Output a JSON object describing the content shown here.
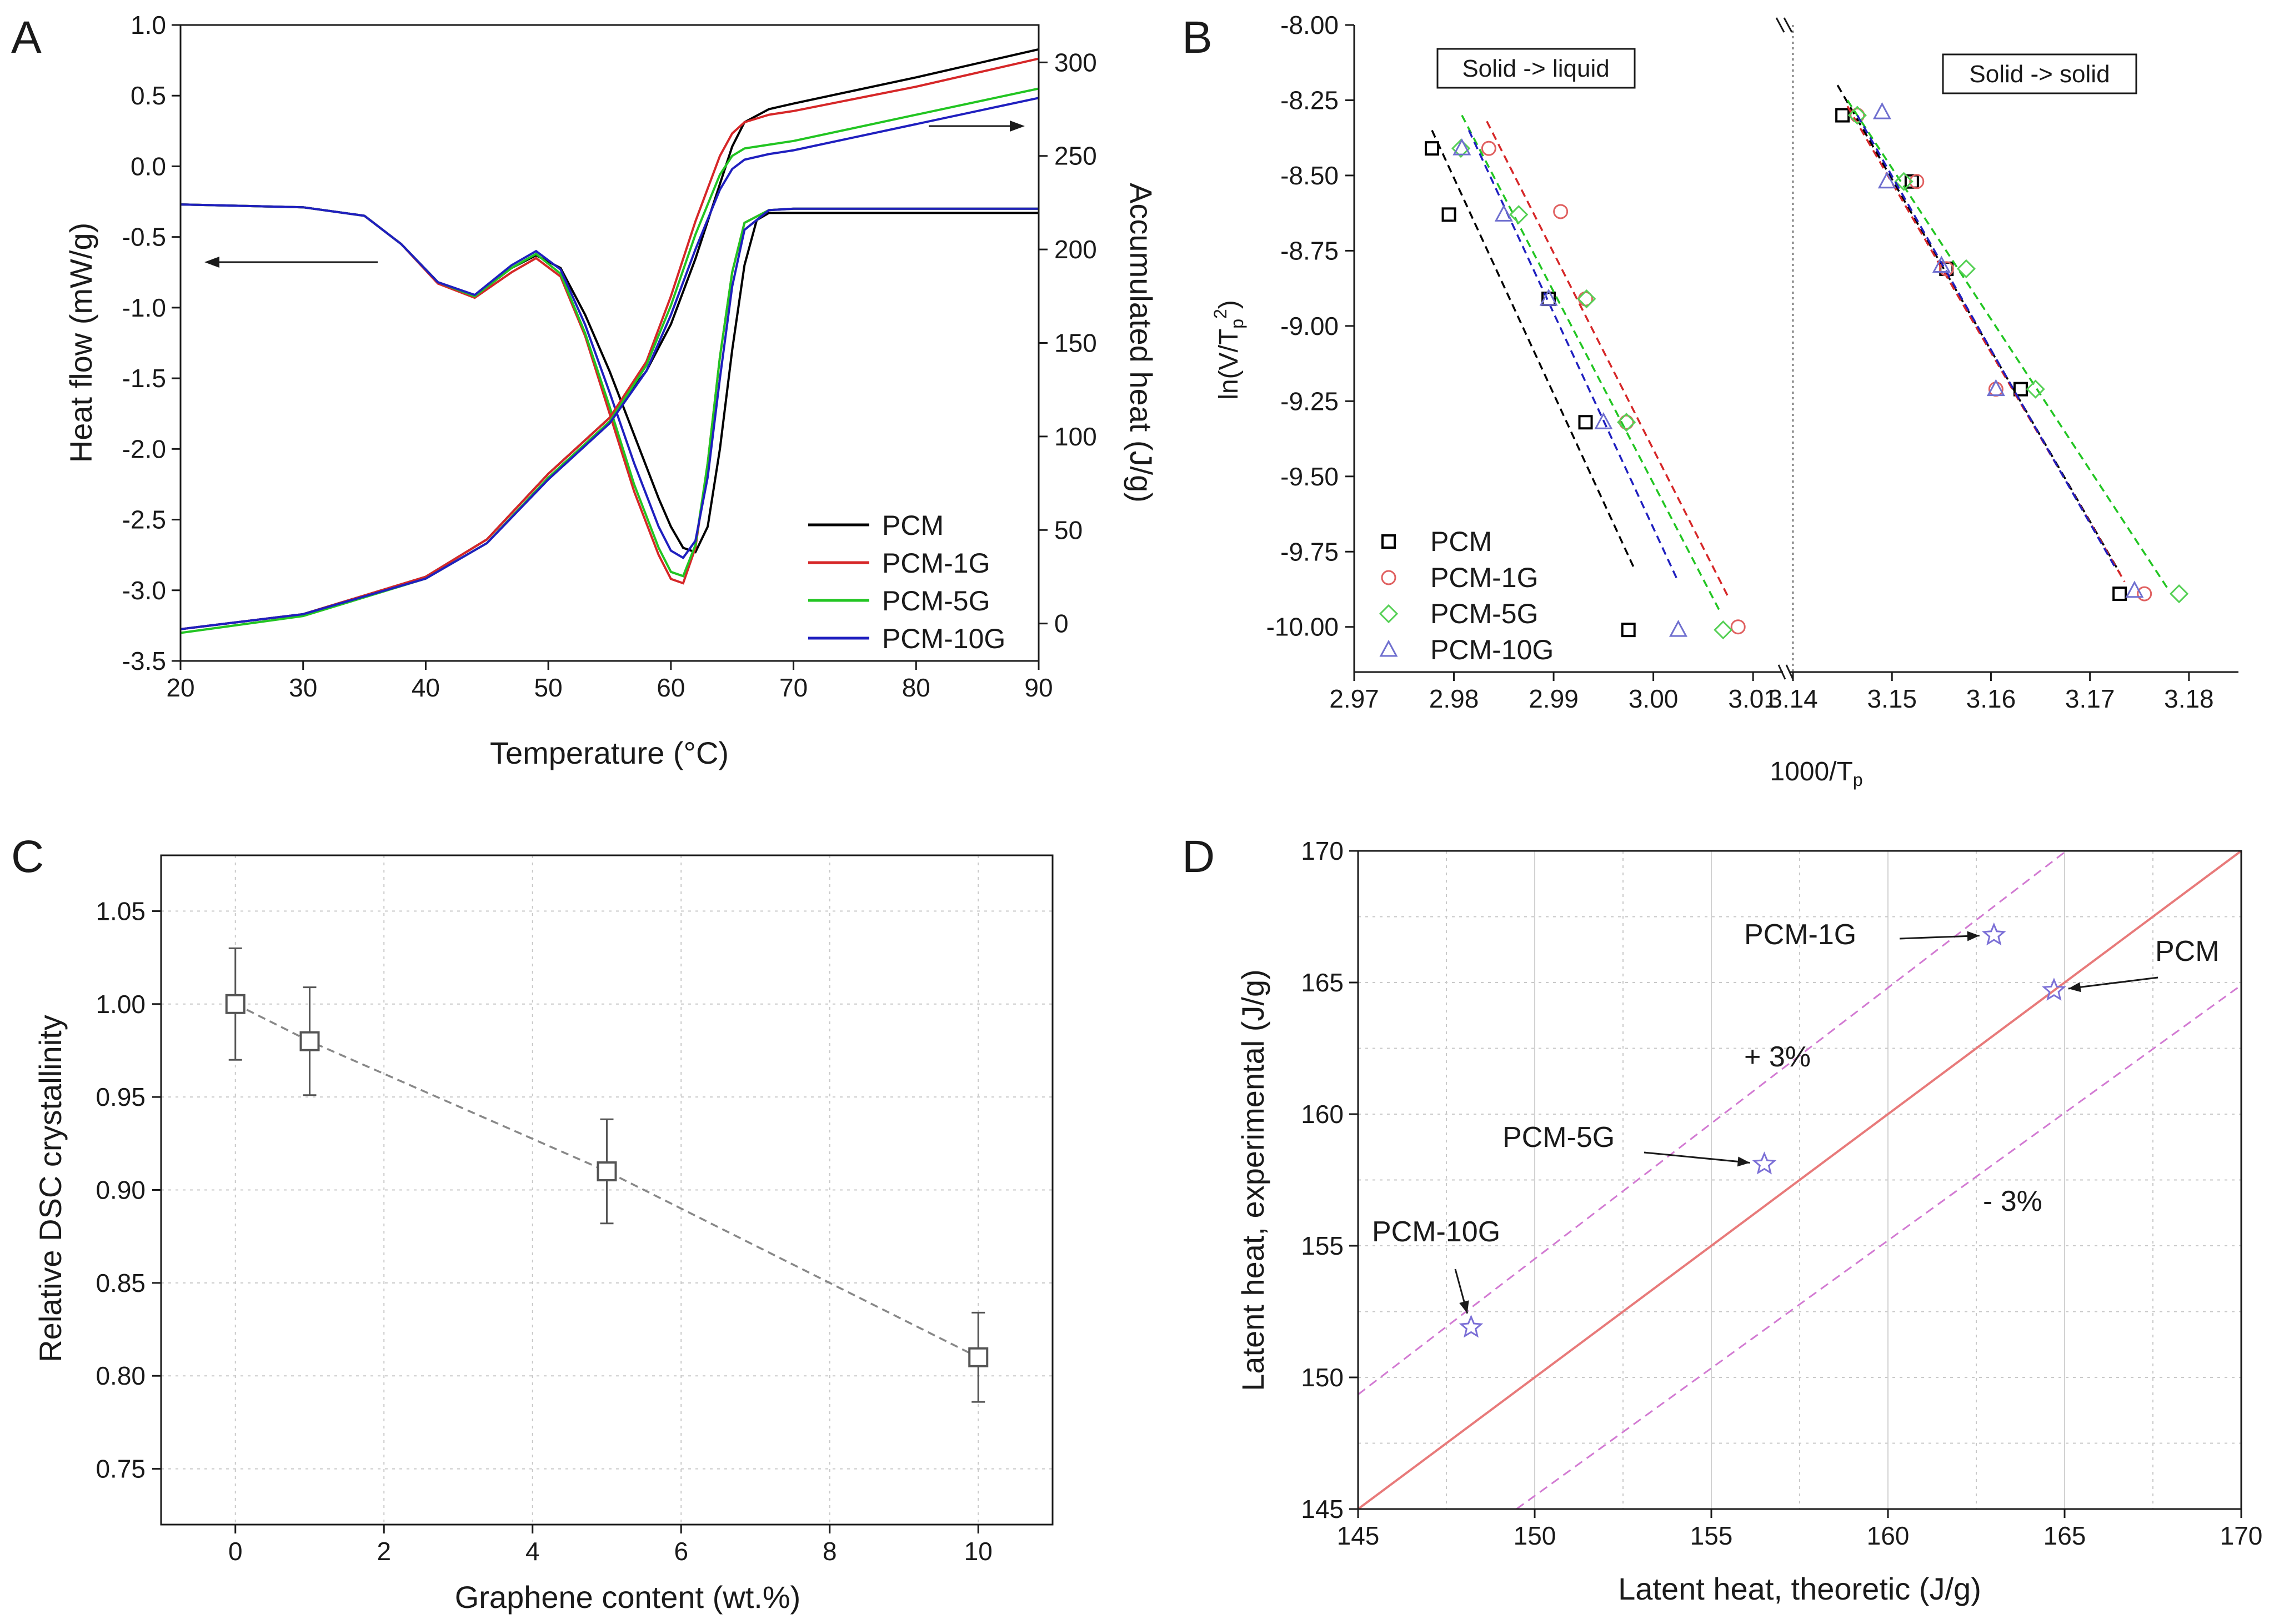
{
  "chart_data": [
    {
      "panel": "A",
      "type": "line",
      "xlabel": "Temperature (°C)",
      "ylabel": "Heat flow (mW/g)",
      "y2label": "Accumulated heat (J/g)",
      "xlim": [
        20,
        90
      ],
      "ylim": [
        -3.5,
        1.0
      ],
      "y2lim": [
        -20,
        320
      ],
      "xticks": [
        "20",
        "30",
        "40",
        "50",
        "60",
        "70",
        "80",
        "90"
      ],
      "yticks": [
        "-3.5",
        "-3.0",
        "-2.5",
        "-2.0",
        "-1.5",
        "-1.0",
        "-0.5",
        "0.0",
        "0.5",
        "1.0"
      ],
      "y2ticks": [
        "0",
        "50",
        "100",
        "150",
        "200",
        "250",
        "300"
      ],
      "legend": [
        "PCM",
        "PCM-1G",
        "PCM-5G",
        "PCM-10G"
      ],
      "colors": [
        "#000000",
        "#d62728",
        "#22c522",
        "#1f1fbf"
      ],
      "heat_flow_series": [
        {
          "name": "PCM",
          "x": [
            20,
            30,
            35,
            38,
            41,
            44,
            47,
            49,
            51,
            53,
            55,
            57,
            59,
            60,
            61,
            62,
            63,
            64,
            65,
            66,
            67,
            68,
            70,
            80,
            90
          ],
          "y": [
            -0.27,
            -0.29,
            -0.35,
            -0.55,
            -0.82,
            -0.92,
            -0.72,
            -0.63,
            -0.72,
            -1.05,
            -1.45,
            -1.9,
            -2.35,
            -2.55,
            -2.7,
            -2.73,
            -2.55,
            -2.0,
            -1.3,
            -0.7,
            -0.38,
            -0.33,
            -0.33,
            -0.33,
            -0.33
          ]
        },
        {
          "name": "PCM-1G",
          "x": [
            20,
            30,
            35,
            38,
            41,
            44,
            47,
            49,
            51,
            53,
            55,
            57,
            59,
            60,
            61,
            62,
            63,
            64,
            65,
            66,
            68,
            70,
            80,
            90
          ],
          "y": [
            -0.27,
            -0.29,
            -0.35,
            -0.55,
            -0.83,
            -0.93,
            -0.75,
            -0.65,
            -0.78,
            -1.2,
            -1.75,
            -2.3,
            -2.75,
            -2.92,
            -2.95,
            -2.7,
            -2.1,
            -1.35,
            -0.75,
            -0.4,
            -0.31,
            -0.3,
            -0.3,
            -0.3
          ]
        },
        {
          "name": "PCM-5G",
          "x": [
            20,
            30,
            35,
            38,
            41,
            44,
            47,
            49,
            51,
            53,
            55,
            57,
            59,
            60,
            61,
            62,
            63,
            64,
            65,
            66,
            68,
            70,
            80,
            90
          ],
          "y": [
            -0.27,
            -0.29,
            -0.35,
            -0.55,
            -0.82,
            -0.92,
            -0.72,
            -0.62,
            -0.76,
            -1.18,
            -1.7,
            -2.25,
            -2.7,
            -2.87,
            -2.9,
            -2.68,
            -2.1,
            -1.35,
            -0.75,
            -0.4,
            -0.31,
            -0.3,
            -0.3,
            -0.3
          ]
        },
        {
          "name": "PCM-10G",
          "x": [
            20,
            30,
            35,
            38,
            41,
            44,
            47,
            49,
            51,
            53,
            55,
            57,
            59,
            60,
            61,
            62,
            63,
            64,
            65,
            66,
            68,
            70,
            80,
            90
          ],
          "y": [
            -0.27,
            -0.29,
            -0.35,
            -0.55,
            -0.82,
            -0.91,
            -0.7,
            -0.6,
            -0.73,
            -1.12,
            -1.6,
            -2.1,
            -2.55,
            -2.72,
            -2.77,
            -2.65,
            -2.2,
            -1.5,
            -0.85,
            -0.45,
            -0.31,
            -0.3,
            -0.3,
            -0.3
          ]
        }
      ],
      "accumulated_heat_series": [
        {
          "name": "PCM",
          "x": [
            20,
            30,
            40,
            45,
            50,
            55,
            58,
            60,
            62,
            64,
            65,
            66,
            68,
            70,
            80,
            90
          ],
          "y": [
            -3,
            5,
            25,
            45,
            80,
            110,
            135,
            160,
            195,
            235,
            255,
            268,
            275,
            278,
            292,
            307
          ]
        },
        {
          "name": "PCM-1G",
          "x": [
            20,
            30,
            40,
            45,
            50,
            55,
            58,
            60,
            62,
            64,
            65,
            66,
            68,
            70,
            80,
            90
          ],
          "y": [
            -3,
            5,
            25,
            45,
            80,
            110,
            140,
            175,
            215,
            250,
            262,
            268,
            272,
            274,
            287,
            302
          ]
        },
        {
          "name": "PCM-5G",
          "x": [
            20,
            30,
            40,
            45,
            50,
            55,
            58,
            60,
            62,
            64,
            65,
            66,
            68,
            70,
            80,
            90
          ],
          "y": [
            -5,
            4,
            24,
            43,
            78,
            108,
            138,
            170,
            208,
            240,
            250,
            254,
            256,
            258,
            272,
            286
          ]
        },
        {
          "name": "PCM-10G",
          "x": [
            20,
            30,
            40,
            45,
            50,
            55,
            58,
            60,
            62,
            64,
            65,
            66,
            68,
            70,
            80,
            90
          ],
          "y": [
            -3,
            5,
            24,
            43,
            77,
            107,
            135,
            165,
            200,
            232,
            243,
            248,
            251,
            253,
            267,
            281
          ]
        }
      ]
    },
    {
      "panel": "B",
      "type": "scatter",
      "xlabel": "1000/Tp",
      "ylabel": "ln(V/Tp²)",
      "ylim": [
        -10.15,
        -8.0
      ],
      "xlim_left": [
        2.97,
        3.013
      ],
      "xlim_right": [
        3.14,
        3.185
      ],
      "xticks_left": [
        "2.97",
        "2.98",
        "2.99",
        "3.00",
        "3.01"
      ],
      "xticks_right": [
        "3.14",
        "3.15",
        "3.16",
        "3.17",
        "3.18"
      ],
      "yticks": [
        "-8.00",
        "-8.25",
        "-8.50",
        "-8.75",
        "-9.00",
        "-9.25",
        "-9.50",
        "-9.75",
        "-10.00"
      ],
      "box_left": "Solid -> liquid",
      "box_right": "Solid -> solid",
      "legend": [
        "PCM",
        "PCM-1G",
        "PCM-5G",
        "PCM-10G"
      ],
      "series_left": [
        {
          "name": "PCM",
          "x": [
            2.9778,
            2.9795,
            2.9895,
            2.9932,
            2.9975
          ],
          "y": [
            -8.41,
            -8.63,
            -8.91,
            -9.32,
            -10.01
          ],
          "fit": [
            [
              2.9778,
              -8.35
            ],
            [
              2.998,
              -9.8
            ]
          ]
        },
        {
          "name": "PCM-1G",
          "x": [
            2.9835,
            2.9907,
            2.9932,
            2.9973,
            3.0085
          ],
          "y": [
            -8.41,
            -8.62,
            -8.91,
            -9.32,
            -10.0
          ],
          "fit": [
            [
              2.9833,
              -8.32
            ],
            [
              3.0075,
              -9.9
            ]
          ]
        },
        {
          "name": "PCM-5G",
          "x": [
            2.9807,
            2.9865,
            2.9933,
            2.9973,
            3.007
          ],
          "y": [
            -8.41,
            -8.63,
            -8.91,
            -9.32,
            -10.01
          ],
          "fit": [
            [
              2.9808,
              -8.3
            ],
            [
              3.0067,
              -9.95
            ]
          ]
        },
        {
          "name": "PCM-10G",
          "x": [
            2.9808,
            2.985,
            2.9895,
            2.995,
            3.0025
          ],
          "y": [
            -8.41,
            -8.63,
            -8.91,
            -9.32,
            -10.01
          ],
          "fit": [
            [
              2.9815,
              -8.35
            ],
            [
              3.0025,
              -9.85
            ]
          ]
        }
      ],
      "series_right": [
        {
          "name": "PCM",
          "x": [
            3.145,
            3.152,
            3.1555,
            3.163,
            3.173
          ],
          "y": [
            -8.3,
            -8.52,
            -8.81,
            -9.21,
            -9.89
          ],
          "fit": [
            [
              3.1445,
              -8.2
            ],
            [
              3.173,
              -9.82
            ]
          ]
        },
        {
          "name": "PCM-1G",
          "x": [
            3.1465,
            3.1525,
            3.1555,
            3.1605,
            3.1755
          ],
          "y": [
            -8.3,
            -8.52,
            -8.81,
            -9.21,
            -9.89
          ],
          "fit": [
            [
              3.1455,
              -8.27
            ],
            [
              3.1735,
              -9.85
            ]
          ]
        },
        {
          "name": "PCM-5G",
          "x": [
            3.1465,
            3.1512,
            3.1575,
            3.1645,
            3.179
          ],
          "y": [
            -8.3,
            -8.52,
            -8.81,
            -9.21,
            -9.89
          ],
          "fit": [
            [
              3.1455,
              -8.25
            ],
            [
              3.178,
              -9.88
            ]
          ]
        },
        {
          "name": "PCM-10G",
          "x": [
            3.149,
            3.1495,
            3.155,
            3.1605,
            3.1745
          ],
          "y": [
            -8.29,
            -8.52,
            -8.8,
            -9.21,
            -9.88
          ],
          "fit": [
            [
              3.1465,
              -8.3
            ],
            [
              3.1725,
              -9.8
            ]
          ]
        }
      ]
    },
    {
      "panel": "C",
      "type": "scatter",
      "xlabel": "Graphene content (wt.%)",
      "ylabel": "Relative DSC crystallinity",
      "xlim": [
        -1,
        11
      ],
      "ylim": [
        0.72,
        1.08
      ],
      "xticks": [
        "0",
        "2",
        "4",
        "6",
        "8",
        "10"
      ],
      "yticks": [
        "0.75",
        "0.80",
        "0.85",
        "0.90",
        "0.95",
        "1.00",
        "1.05"
      ],
      "x": [
        0,
        1,
        5,
        10
      ],
      "y": [
        1.0,
        0.98,
        0.91,
        0.81
      ],
      "err": [
        0.03,
        0.029,
        0.028,
        0.024
      ]
    },
    {
      "panel": "D",
      "type": "scatter",
      "xlabel": "Latent heat, theoretic (J/g)",
      "ylabel": "Latent heat, experimental (J/g)",
      "xlim": [
        145,
        170
      ],
      "ylim": [
        145,
        170
      ],
      "xticks": [
        "145",
        "150",
        "155",
        "160",
        "165",
        "170"
      ],
      "yticks": [
        "145",
        "150",
        "155",
        "160",
        "165",
        "170"
      ],
      "points": [
        {
          "name": "PCM",
          "x": 164.7,
          "y": 164.7
        },
        {
          "name": "PCM-1G",
          "x": 163.0,
          "y": 166.8
        },
        {
          "name": "PCM-5G",
          "x": 156.5,
          "y": 158.1
        },
        {
          "name": "PCM-10G",
          "x": 148.2,
          "y": 151.9
        }
      ],
      "band_plus": "+ 3%",
      "band_minus": "- 3%",
      "band_fraction": 0.03
    }
  ],
  "labels": {
    "a": "A",
    "b": "B",
    "c": "C",
    "d": "D"
  },
  "colors": {
    "pcm": "#000000",
    "pcm1g": "#d62728",
    "pcm5g": "#22c522",
    "pcm10g": "#1f1fbf",
    "b_pcm": "#000000",
    "b_1g": "#e06060",
    "b_5g": "#55d055",
    "b_10g": "#6f6fcf",
    "d_line": "#e87a7a",
    "d_band": "#d27ad2",
    "d_star": "#7b6fd6"
  }
}
